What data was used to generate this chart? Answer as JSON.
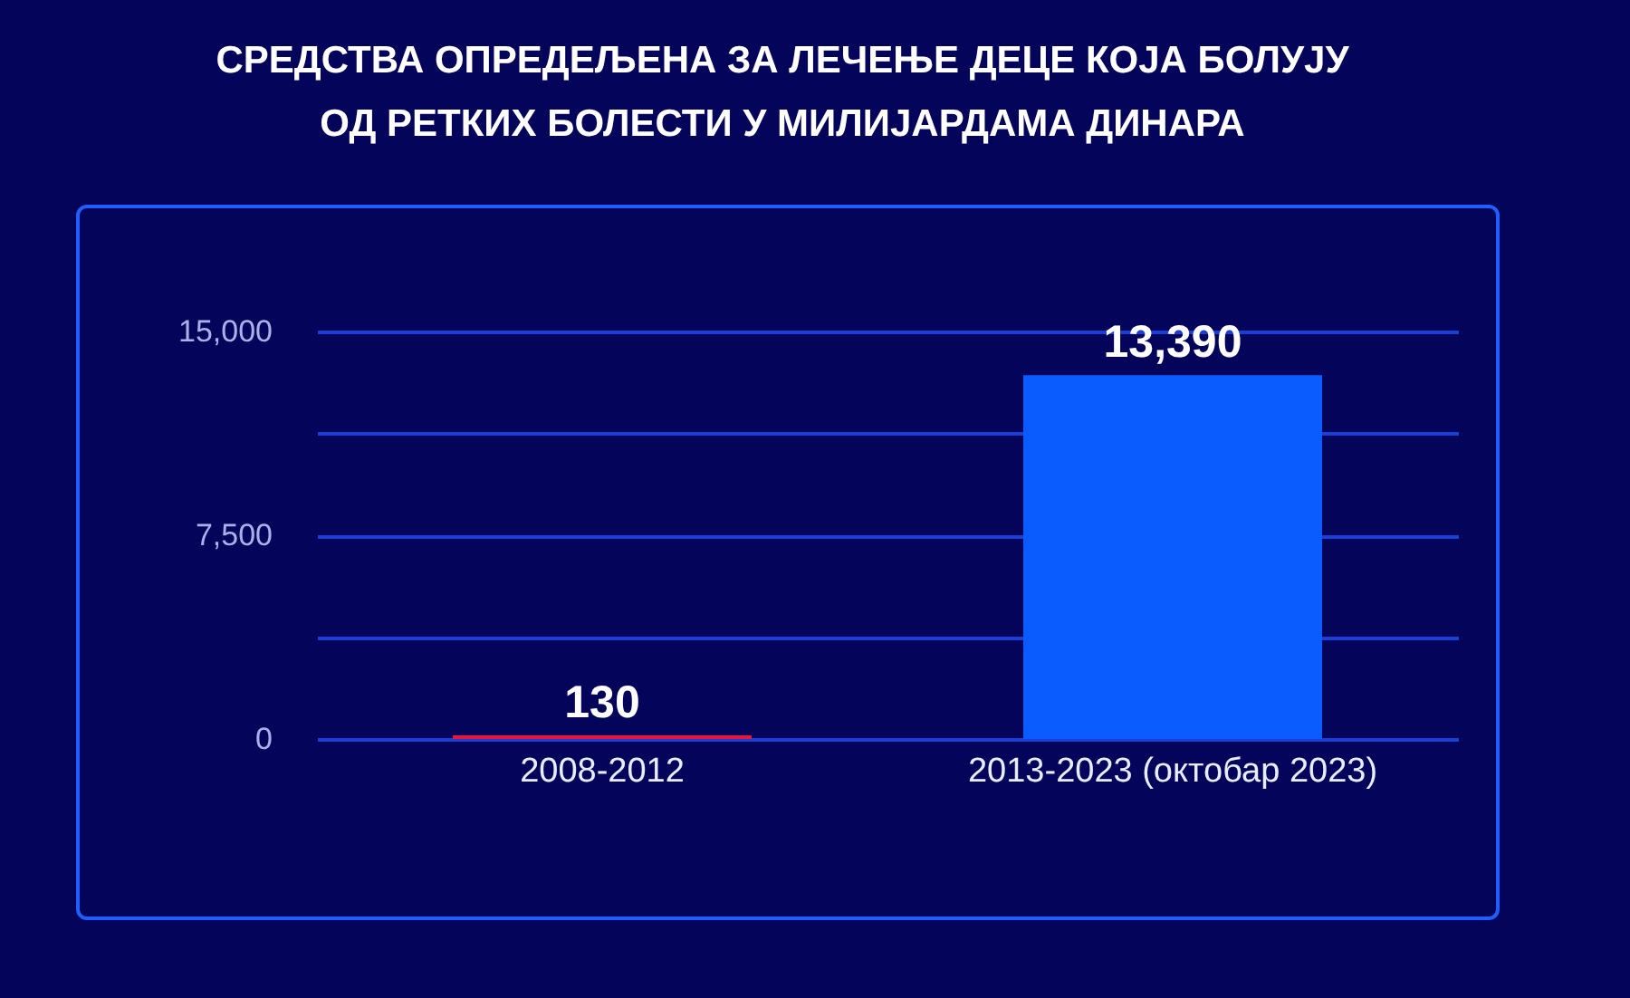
{
  "chart_data": {
    "type": "bar",
    "title": [
      "СРЕДСТВА ОПРЕДЕЉЕНА ЗА ЛЕЧЕЊЕ ДЕЦЕ КОЈА БОЛУЈУ",
      "ОД РЕТКИХ БОЛЕСТИ У МИЛИЈАРДАМА ДИНАРА"
    ],
    "categories": [
      "2008-2012",
      "2013-2023\n(октобар 2023)"
    ],
    "values": [
      130,
      13390
    ],
    "colors": [
      "#e8173a",
      "#0a5cff"
    ],
    "ylim": [
      0,
      15000
    ],
    "yticks": [
      0,
      {
        "value": 3750,
        "label": null
      },
      {
        "value": 7500,
        "label": "7,500"
      },
      {
        "value": 11250,
        "label": null
      },
      {
        "value": 15000,
        "label": "15,000"
      }
    ],
    "grid": true,
    "value_labels": [
      "130",
      "13,390"
    ]
  }
}
